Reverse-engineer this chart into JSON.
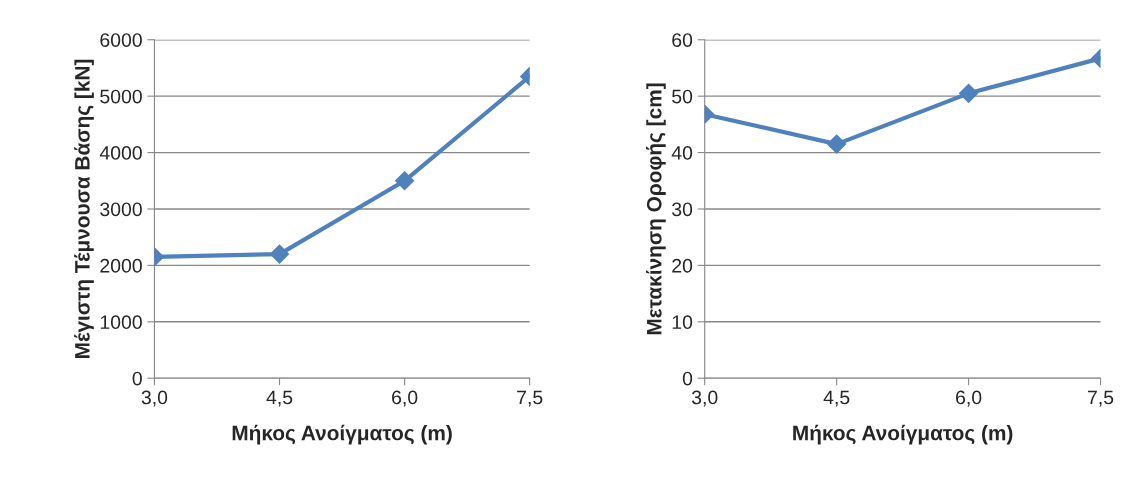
{
  "chart_data": [
    {
      "type": "line",
      "categories": [
        "3,0",
        "4,5",
        "6,0",
        "7,5"
      ],
      "xlabel": "Μήκος Ανοίγματος (m)",
      "ylabel": "Μέγιστη Τέμνουσα Βάσης [kN]",
      "series": [
        {
          "color": "#4f81bd",
          "values": [
            2150,
            2200,
            3500,
            5350
          ]
        }
      ],
      "ylim": [
        0,
        6000
      ],
      "yticks": [
        0,
        1000,
        2000,
        3000,
        4000,
        5000,
        6000
      ],
      "grid": "y",
      "marker": "diamond",
      "line_style": "solid"
    },
    {
      "type": "line",
      "categories": [
        "3,0",
        "4,5",
        "6,0",
        "7,5"
      ],
      "xlabel": "Μήκος Ανοίγματος (m)",
      "ylabel": "Μετακίνηση Οροφής [cm]",
      "series": [
        {
          "color": "#4f81bd",
          "values": [
            46.8,
            41.5,
            50.5,
            56.7
          ]
        }
      ],
      "ylim": [
        0,
        60
      ],
      "yticks": [
        0,
        10,
        20,
        30,
        40,
        50,
        60
      ],
      "grid": "y",
      "marker": "diamond",
      "line_style": "solid"
    }
  ]
}
